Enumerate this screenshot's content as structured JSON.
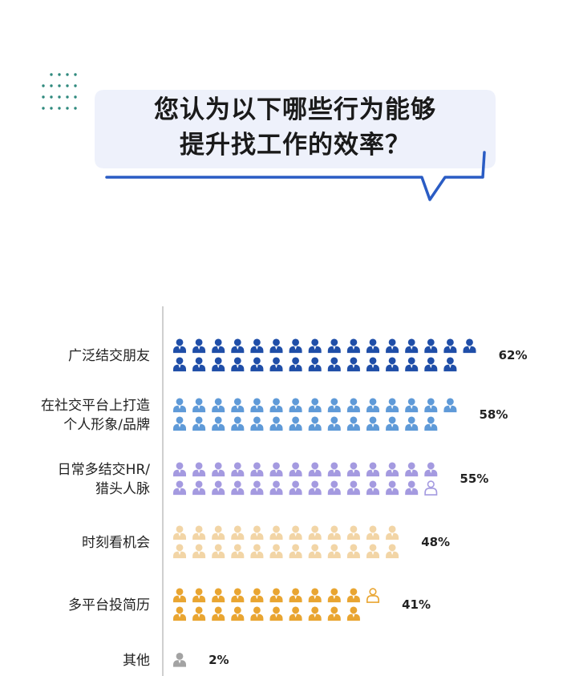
{
  "header": {
    "title_lines": [
      "您认为以下哪些行为能够",
      "提升找工作的效率？"
    ]
  },
  "colors": {
    "bubble_fill": "#eef1fb",
    "bubble_border": "#2a5cc4",
    "dots": "#2f8a7e",
    "axis": "#bfbfbf"
  },
  "chart_data": {
    "type": "bar",
    "unit": "%",
    "categories": [
      {
        "lines": [
          "广泛结交朋友"
        ],
        "value": 62,
        "label": "62%",
        "color": "#1f4ea8"
      },
      {
        "lines": [
          "在社交平台上打造",
          "个人形象/品牌"
        ],
        "value": 58,
        "label": "58%",
        "color": "#5f9ad8"
      },
      {
        "lines": [
          "日常多结交HR/",
          "猎头人脉"
        ],
        "value": 55,
        "label": "55%",
        "color": "#a49ae0"
      },
      {
        "lines": [
          "时刻看机会"
        ],
        "value": 48,
        "label": "48%",
        "color": "#f2d5a6"
      },
      {
        "lines": [
          "多平台投简历"
        ],
        "value": 41,
        "label": "41%",
        "color": "#e9a531"
      },
      {
        "lines": [
          "其他"
        ],
        "value": 2,
        "label": "2%",
        "color": "#a3a3a3"
      }
    ]
  }
}
